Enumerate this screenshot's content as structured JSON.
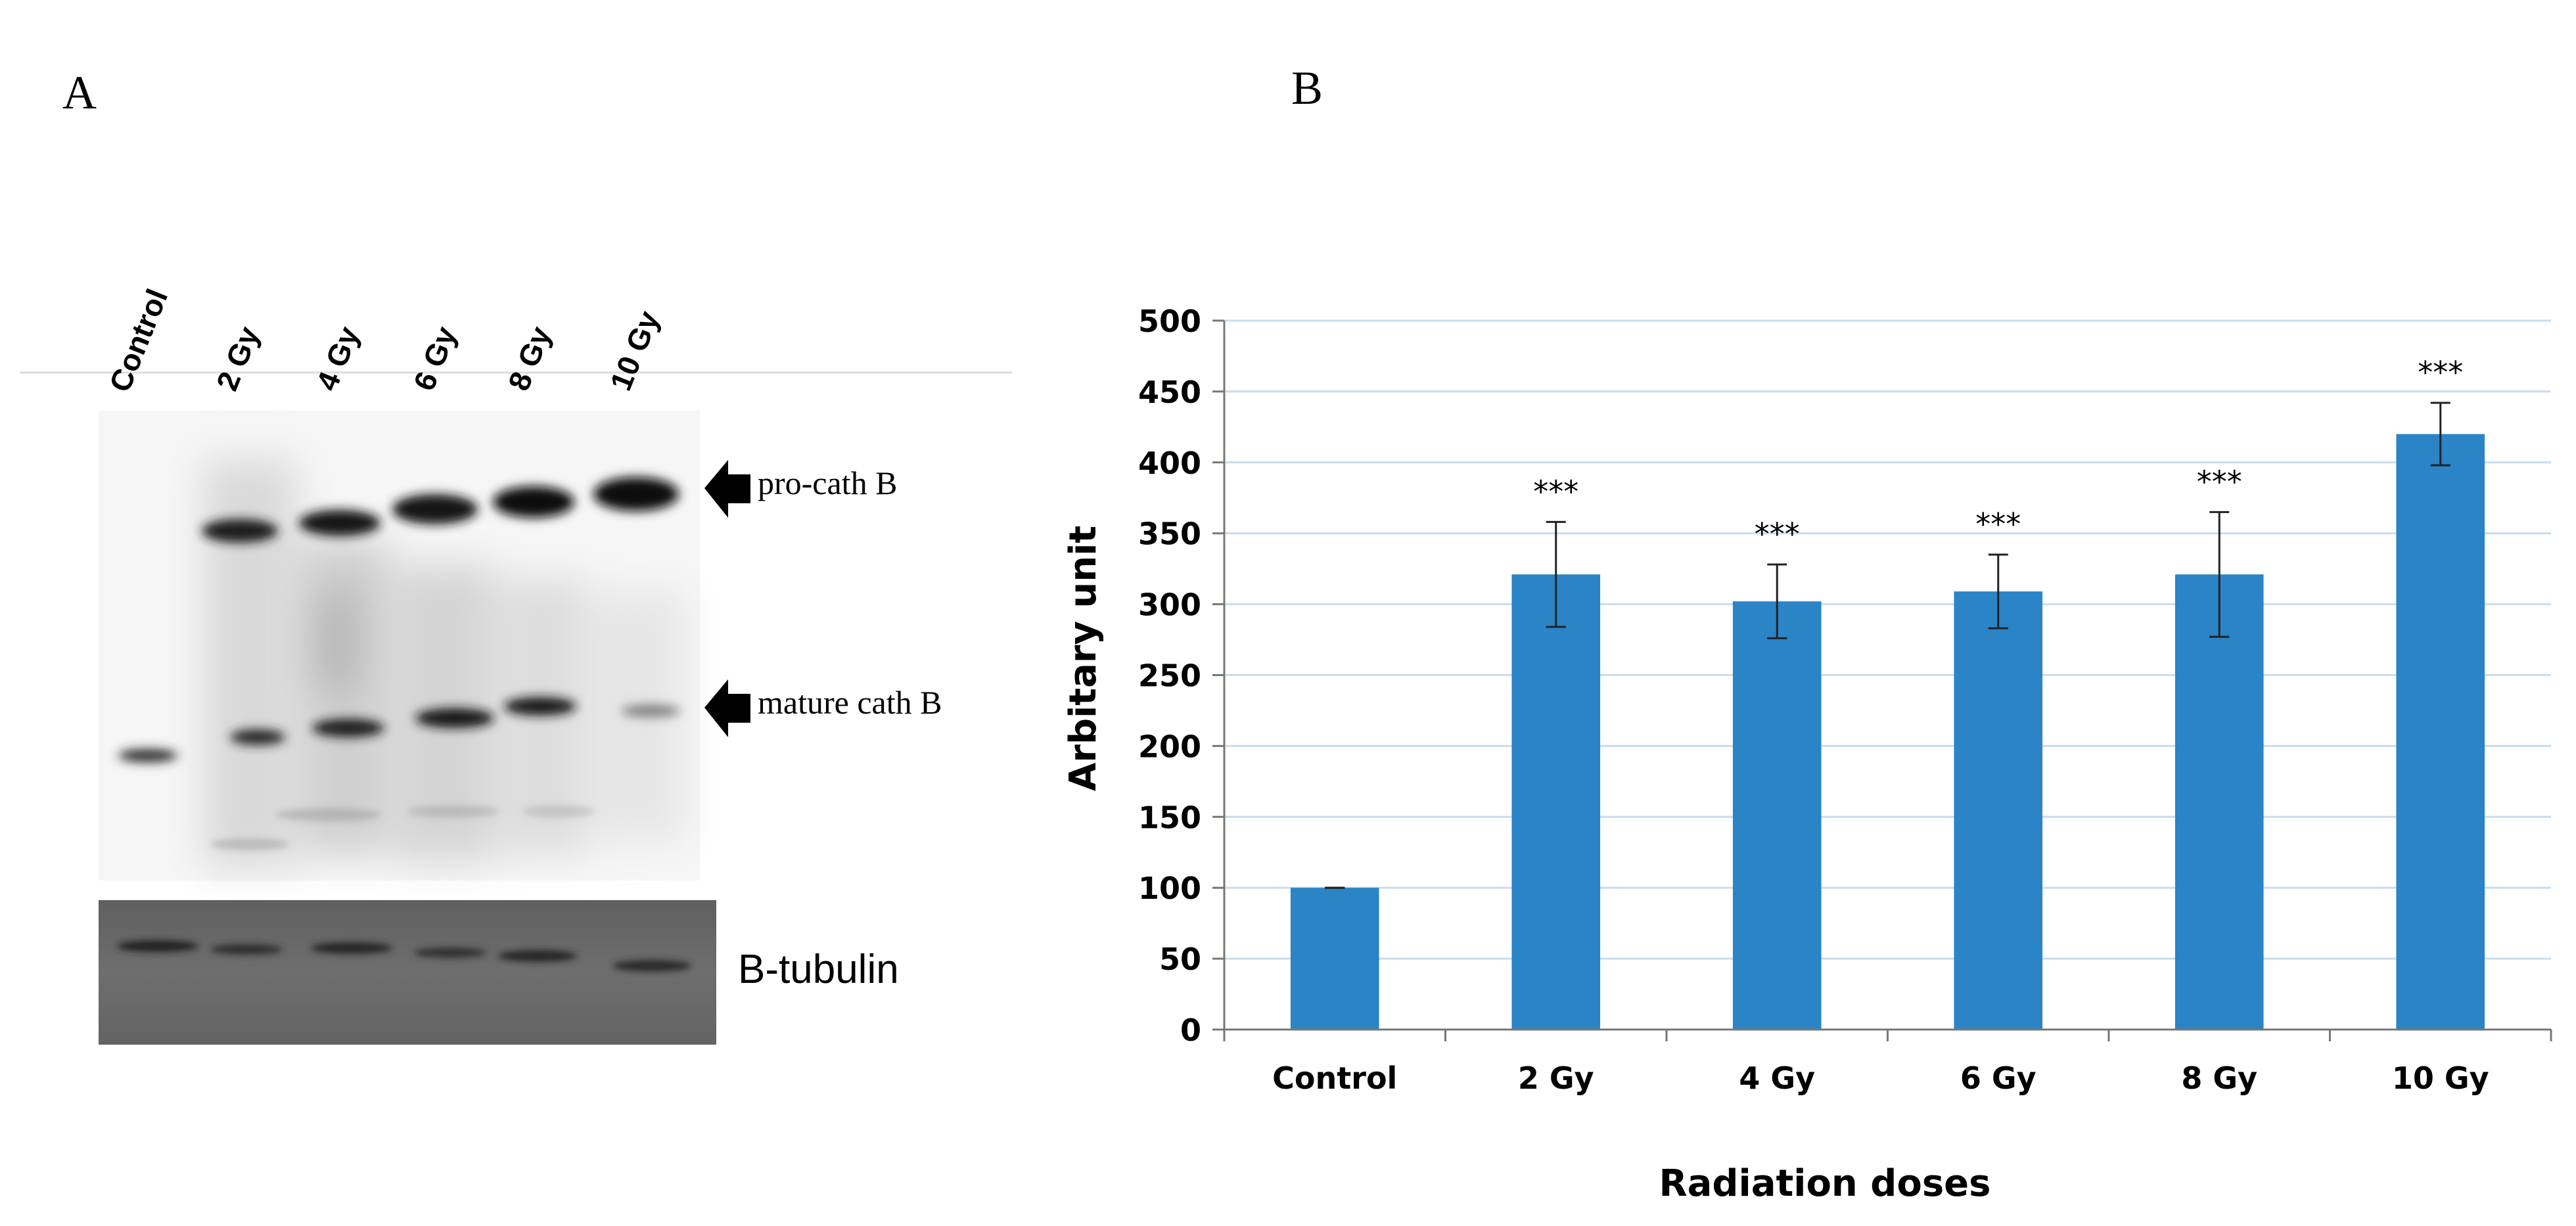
{
  "panels": {
    "a_label": "A",
    "b_label": "B"
  },
  "western_blot": {
    "lanes": [
      "Control",
      "2 Gy",
      "4 Gy",
      "6 Gy",
      "8 Gy",
      "10 Gy"
    ],
    "band_labels": {
      "pro": "pro-cath B",
      "mature": "mature cath B",
      "loading": "B-tubulin"
    }
  },
  "chart_data": {
    "type": "bar",
    "categories": [
      "Control",
      "2 Gy",
      "4 Gy",
      "6 Gy",
      "8 Gy",
      "10 Gy"
    ],
    "values": [
      100,
      321,
      302,
      309,
      321,
      420
    ],
    "errors": [
      0,
      37,
      26,
      26,
      44,
      22
    ],
    "significance": [
      "",
      "***",
      "***",
      "***",
      "***",
      "***"
    ],
    "title": "",
    "xlabel": "Radiation doses",
    "ylabel": "Arbitary unit",
    "ylim": [
      0,
      500
    ],
    "yticks": [
      0,
      50,
      100,
      150,
      200,
      250,
      300,
      350,
      400,
      450,
      500
    ],
    "grid": true,
    "bar_color": "#2A84C6",
    "grid_color": "#C9DDEE"
  }
}
